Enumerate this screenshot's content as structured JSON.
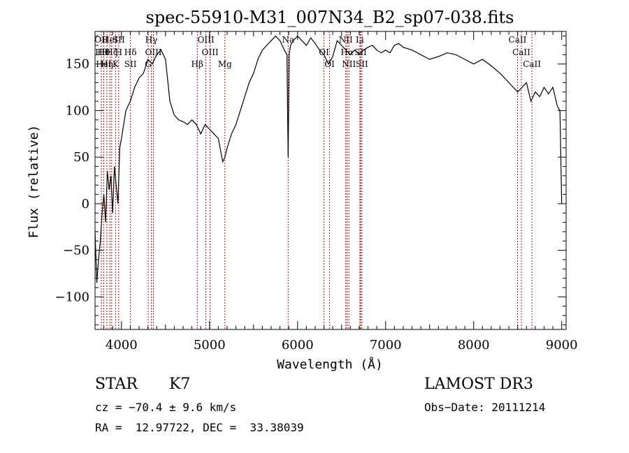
{
  "chart_data": {
    "type": "line",
    "title": "spec-55910-M31_007N34_B2_sp07-038.fits",
    "xlabel": "Wavelength (Å)",
    "ylabel": "Flux (relative)",
    "xlim": [
      3700,
      9050
    ],
    "ylim": [
      -135,
      185
    ],
    "xticks": [
      4000,
      5000,
      6000,
      7000,
      8000,
      9000
    ],
    "yticks": [
      -100,
      -50,
      0,
      50,
      100,
      150
    ],
    "line_color": "#000000",
    "marker_color": "#c00000",
    "series": [
      {
        "x": [
          3700,
          3720,
          3740,
          3760,
          3780,
          3800,
          3820,
          3840,
          3860,
          3880,
          3900,
          3920,
          3940,
          3960,
          3980,
          4000,
          4050,
          4100,
          4150,
          4200,
          4250,
          4300,
          4350,
          4400,
          4450,
          4500,
          4550,
          4600,
          4650,
          4700,
          4750,
          4800,
          4850,
          4900,
          4950,
          5000,
          5050,
          5100,
          5150,
          5175,
          5200,
          5250,
          5300,
          5350,
          5400,
          5450,
          5500,
          5550,
          5600,
          5650,
          5700,
          5750,
          5800,
          5850,
          5880,
          5893,
          5905,
          5920,
          5950,
          6000,
          6050,
          6100,
          6150,
          6200,
          6250,
          6300,
          6350,
          6400,
          6450,
          6500,
          6550,
          6600,
          6650,
          6700,
          6750,
          6800,
          6850,
          6900,
          6950,
          7000,
          7050,
          7100,
          7150,
          7200,
          7300,
          7400,
          7500,
          7600,
          7700,
          7800,
          7900,
          8000,
          8100,
          8200,
          8300,
          8400,
          8450,
          8500,
          8550,
          8600,
          8650,
          8700,
          8750,
          8800,
          8850,
          8900,
          8950,
          8980,
          9000
        ],
        "y": [
          -30,
          -85,
          -60,
          -40,
          -10,
          10,
          -20,
          35,
          15,
          30,
          -10,
          40,
          20,
          0,
          60,
          70,
          100,
          110,
          125,
          135,
          140,
          155,
          150,
          160,
          165,
          155,
          110,
          95,
          90,
          88,
          85,
          90,
          85,
          75,
          85,
          80,
          75,
          70,
          45,
          50,
          60,
          75,
          85,
          100,
          115,
          130,
          140,
          155,
          165,
          170,
          175,
          180,
          175,
          165,
          160,
          50,
          160,
          170,
          175,
          180,
          175,
          170,
          178,
          172,
          165,
          160,
          150,
          158,
          175,
          170,
          165,
          160,
          165,
          160,
          165,
          168,
          170,
          165,
          162,
          165,
          162,
          170,
          172,
          168,
          165,
          160,
          155,
          158,
          162,
          160,
          155,
          150,
          155,
          148,
          140,
          130,
          125,
          120,
          125,
          130,
          110,
          120,
          115,
          125,
          118,
          125,
          105,
          100,
          0
        ]
      }
    ],
    "lines": [
      {
        "w": 3771,
        "labels": [
          "OII",
          "Hθ"
        ]
      },
      {
        "w": 3798,
        "labels": [
          "Hθ",
          "HeI"
        ]
      },
      {
        "w": 3835,
        "labels": [
          "Hη"
        ]
      },
      {
        "w": 3869,
        "labels": [
          "HeI"
        ]
      },
      {
        "w": 3889,
        "labels": [
          "Hζ"
        ]
      },
      {
        "w": 3933,
        "labels": [
          "K"
        ]
      },
      {
        "w": 3969,
        "labels": [
          "SII",
          "H"
        ]
      },
      {
        "w": 4102,
        "labels": [
          "Hδ",
          "SII"
        ]
      },
      {
        "w": 4304,
        "labels": [
          "G"
        ]
      },
      {
        "w": 4340,
        "labels": [
          "Hγ"
        ]
      },
      {
        "w": 4363,
        "labels": [
          "OIII"
        ]
      },
      {
        "w": 4861,
        "labels": [
          "Hβ"
        ]
      },
      {
        "w": 4959,
        "labels": [
          "OIII"
        ]
      },
      {
        "w": 5007,
        "labels": [
          "OIII"
        ]
      },
      {
        "w": 5175,
        "labels": [
          "Mg"
        ]
      },
      {
        "w": 5893,
        "labels": [
          "Na"
        ]
      },
      {
        "w": 6300,
        "labels": [
          "OI"
        ]
      },
      {
        "w": 6364,
        "labels": [
          "OI"
        ]
      },
      {
        "w": 6548,
        "labels": [
          "NII"
        ]
      },
      {
        "w": 6563,
        "labels": [
          "Hα"
        ]
      },
      {
        "w": 6583,
        "labels": [
          "NII"
        ]
      },
      {
        "w": 6708,
        "labels": [
          "Li"
        ]
      },
      {
        "w": 6716,
        "labels": [
          "SII"
        ]
      },
      {
        "w": 6731,
        "labels": [
          "SII"
        ]
      },
      {
        "w": 8498,
        "labels": [
          "CaII"
        ]
      },
      {
        "w": 8542,
        "labels": [
          "CaII"
        ]
      },
      {
        "w": 8662,
        "labels": [
          "CaII"
        ]
      }
    ]
  },
  "info": {
    "class": "STAR",
    "subclass": "K7",
    "survey": "LAMOST DR3",
    "cz": "cz = −70.4 ± 9.6 km/s",
    "obs_date": "Obs−Date: 20111214",
    "coords": "RA =  12.97722, DEC =  33.38039"
  }
}
